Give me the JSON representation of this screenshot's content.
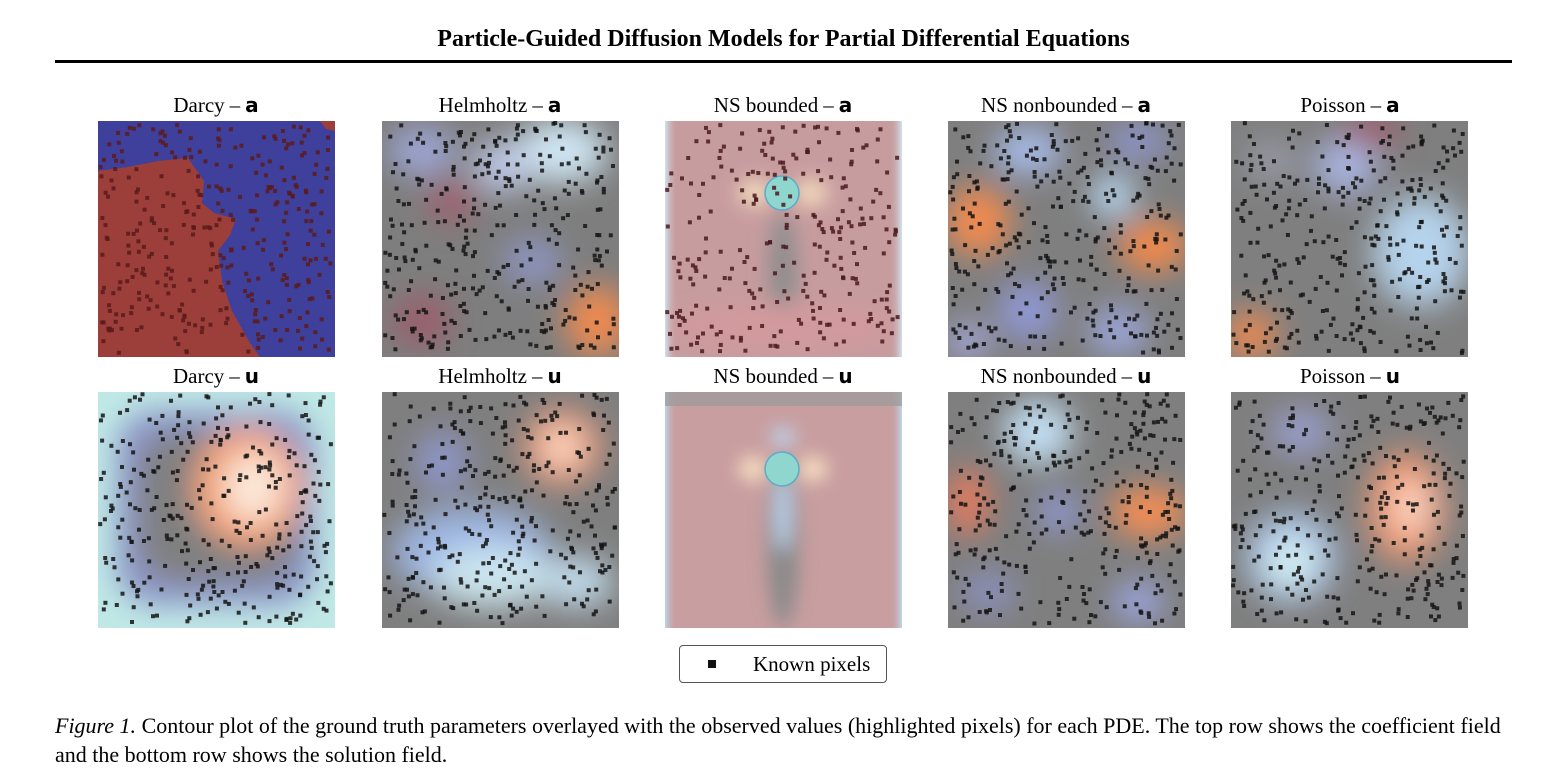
{
  "paper": {
    "running_title": "Particle-Guided Diffusion Models for Partial Differential Equations",
    "caption_label": "Figure 1.",
    "caption_text": " Contour plot of the ground truth parameters overlayed with the observed values (highlighted pixels) for each PDE. The top row shows the coefficient field and the bottom row shows the solution field."
  },
  "figure": {
    "separator": "–",
    "legend_label": "Known pixels",
    "panels": [
      {
        "pde": "Darcy",
        "var": "a"
      },
      {
        "pde": "Helmholtz",
        "var": "a"
      },
      {
        "pde": "NS bounded",
        "var": "a"
      },
      {
        "pde": "NS nonbounded",
        "var": "a"
      },
      {
        "pde": "Poisson",
        "var": "a"
      },
      {
        "pde": "Darcy",
        "var": "u"
      },
      {
        "pde": "Helmholtz",
        "var": "u"
      },
      {
        "pde": "NS bounded",
        "var": "u"
      },
      {
        "pde": "NS nonbounded",
        "var": "u"
      },
      {
        "pde": "Poisson",
        "var": "u"
      }
    ]
  }
}
